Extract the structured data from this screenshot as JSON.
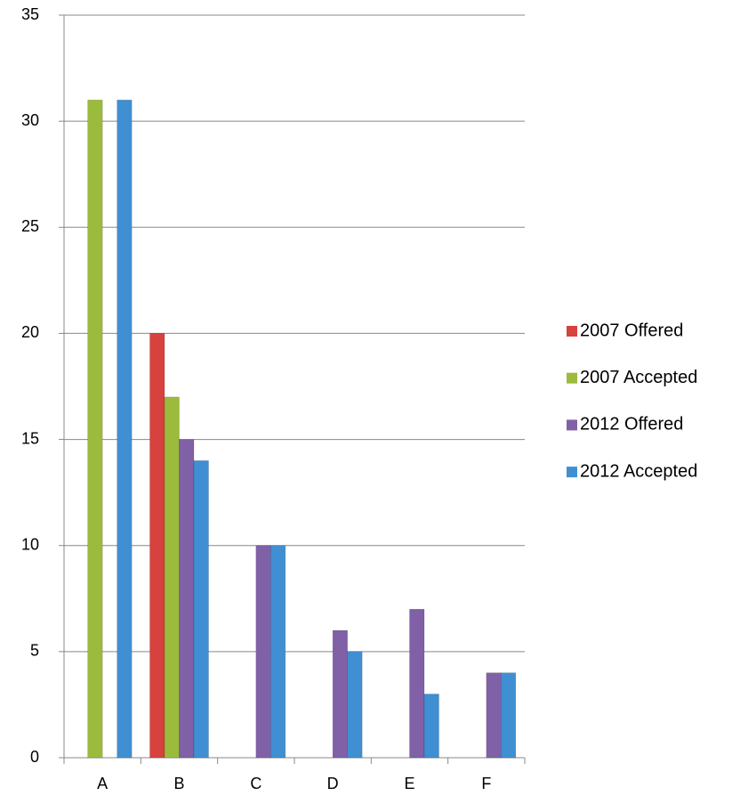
{
  "chart_data": {
    "type": "bar",
    "categories": [
      "A",
      "B",
      "C",
      "D",
      "E",
      "F"
    ],
    "series": [
      {
        "name": "2007 Offered",
        "color": "#d6423d",
        "values": [
          null,
          20,
          null,
          null,
          null,
          null
        ]
      },
      {
        "name": "2007 Accepted",
        "color": "#9bbb3c",
        "values": [
          31,
          17,
          null,
          null,
          null,
          null
        ]
      },
      {
        "name": "2012 Offered",
        "color": "#8060a6",
        "values": [
          null,
          15,
          10,
          6,
          7,
          4
        ]
      },
      {
        "name": "2012 Accepted",
        "color": "#3f8fd2",
        "values": [
          31,
          14,
          10,
          5,
          3,
          4
        ]
      }
    ],
    "ylim": [
      0,
      35
    ],
    "yticks": [
      0,
      5,
      10,
      15,
      20,
      25,
      30,
      35
    ],
    "grid": true,
    "legend": "right"
  }
}
